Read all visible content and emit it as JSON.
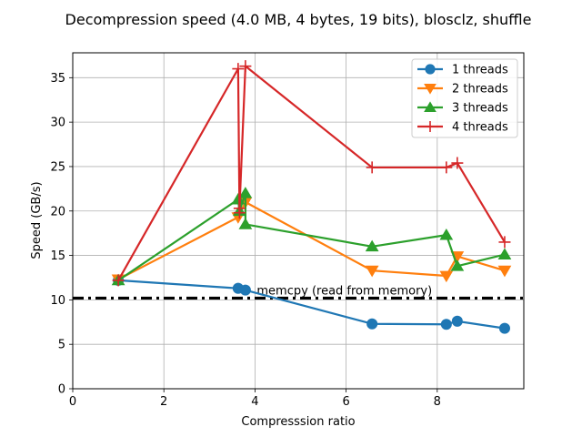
{
  "chart_data": {
    "type": "line",
    "title": "Decompression speed (4.0 MB, 4 bytes, 19 bits), blosclz, shuffle",
    "xlabel": "Compresssion ratio",
    "ylabel": "Speed (GB/s)",
    "xlim": [
      0,
      9.9
    ],
    "ylim": [
      0,
      37.8
    ],
    "xticks": [
      0,
      2,
      4,
      6,
      8
    ],
    "yticks": [
      0,
      5,
      10,
      15,
      20,
      25,
      30,
      35
    ],
    "grid": true,
    "legend_position": "top-right",
    "series": [
      {
        "name": "1 threads",
        "color": "#1f77b4",
        "marker": "circle",
        "x": [
          1.0,
          3.63,
          3.79,
          6.57,
          8.2,
          8.44,
          9.48
        ],
        "y": [
          12.2,
          11.3,
          11.1,
          7.3,
          7.25,
          7.6,
          6.8
        ]
      },
      {
        "name": "2 threads",
        "color": "#ff7f0e",
        "marker": "triangle-down",
        "x": [
          1.0,
          3.63,
          3.79,
          6.57,
          8.2,
          8.44,
          9.48
        ],
        "y": [
          12.3,
          19.3,
          21.0,
          13.3,
          12.7,
          14.9,
          13.3
        ]
      },
      {
        "name": "3 threads",
        "color": "#2ca02c",
        "marker": "triangle-up",
        "x": [
          1.0,
          3.63,
          3.66,
          3.79,
          3.79,
          6.57,
          8.2,
          8.44,
          9.48
        ],
        "y": [
          12.2,
          21.3,
          20.0,
          22.0,
          18.5,
          16.0,
          17.3,
          13.8,
          15.1
        ]
      },
      {
        "name": "4 threads",
        "color": "#d62728",
        "marker": "plus",
        "x": [
          1.0,
          3.63,
          3.66,
          3.66,
          3.79,
          6.57,
          8.2,
          8.44,
          9.48
        ],
        "y": [
          12.2,
          36.0,
          19.8,
          20.3,
          36.3,
          24.9,
          24.9,
          25.4,
          16.5
        ]
      }
    ],
    "reference_line": {
      "y": 10.2,
      "label": "memcpy (read from memory)",
      "label_x": 4.0,
      "label_y": 10.2,
      "color": "#000000"
    }
  }
}
